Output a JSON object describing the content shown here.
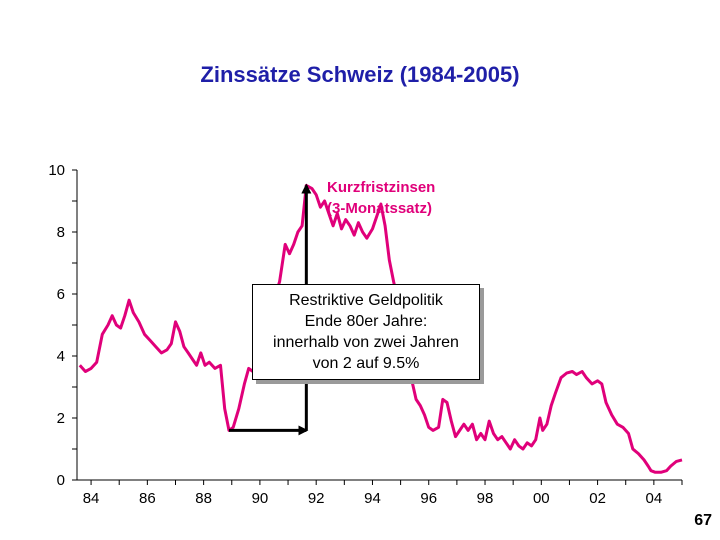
{
  "chart_data": {
    "type": "line",
    "title": "Zinssätze Schweiz (1984-2005)",
    "xlabel": "",
    "ylabel": "",
    "xlim": [
      83.5,
      105
    ],
    "ylim": [
      0,
      10
    ],
    "x_ticks": [
      "84",
      "86",
      "88",
      "90",
      "92",
      "94",
      "96",
      "98",
      "00",
      "02",
      "04"
    ],
    "y_ticks": [
      "0",
      "2",
      "4",
      "6",
      "8",
      "10"
    ],
    "grid": false,
    "series": [
      {
        "name": "Kurzfristzinsen (3-Monatssatz)",
        "color": "#e0007a",
        "points": [
          [
            83.6,
            3.7
          ],
          [
            83.8,
            3.5
          ],
          [
            84.0,
            3.6
          ],
          [
            84.2,
            3.8
          ],
          [
            84.4,
            4.7
          ],
          [
            84.6,
            5.0
          ],
          [
            84.75,
            5.3
          ],
          [
            84.9,
            5.0
          ],
          [
            85.05,
            4.9
          ],
          [
            85.2,
            5.3
          ],
          [
            85.35,
            5.8
          ],
          [
            85.5,
            5.4
          ],
          [
            85.7,
            5.1
          ],
          [
            85.9,
            4.7
          ],
          [
            86.1,
            4.5
          ],
          [
            86.3,
            4.3
          ],
          [
            86.5,
            4.1
          ],
          [
            86.7,
            4.2
          ],
          [
            86.85,
            4.4
          ],
          [
            87.0,
            5.1
          ],
          [
            87.15,
            4.8
          ],
          [
            87.3,
            4.3
          ],
          [
            87.45,
            4.1
          ],
          [
            87.6,
            3.9
          ],
          [
            87.75,
            3.7
          ],
          [
            87.9,
            4.1
          ],
          [
            88.05,
            3.7
          ],
          [
            88.2,
            3.8
          ],
          [
            88.4,
            3.6
          ],
          [
            88.6,
            3.7
          ],
          [
            88.75,
            2.3
          ],
          [
            88.9,
            1.6
          ],
          [
            89.05,
            1.7
          ],
          [
            89.25,
            2.3
          ],
          [
            89.45,
            3.1
          ],
          [
            89.6,
            3.6
          ],
          [
            89.75,
            3.5
          ],
          [
            89.9,
            4.0
          ],
          [
            90.1,
            4.9
          ],
          [
            90.3,
            5.6
          ],
          [
            90.5,
            5.8
          ],
          [
            90.7,
            6.4
          ],
          [
            90.9,
            7.6
          ],
          [
            91.05,
            7.3
          ],
          [
            91.2,
            7.6
          ],
          [
            91.35,
            8.0
          ],
          [
            91.5,
            8.2
          ],
          [
            91.65,
            9.5
          ],
          [
            91.85,
            9.4
          ],
          [
            92.0,
            9.2
          ],
          [
            92.15,
            8.8
          ],
          [
            92.3,
            9.0
          ],
          [
            92.45,
            8.6
          ],
          [
            92.6,
            8.2
          ],
          [
            92.75,
            8.6
          ],
          [
            92.9,
            8.1
          ],
          [
            93.05,
            8.4
          ],
          [
            93.2,
            8.2
          ],
          [
            93.35,
            7.9
          ],
          [
            93.5,
            8.3
          ],
          [
            93.65,
            8.0
          ],
          [
            93.8,
            7.8
          ],
          [
            94.0,
            8.1
          ],
          [
            94.15,
            8.5
          ],
          [
            94.3,
            8.9
          ],
          [
            94.45,
            8.2
          ],
          [
            94.6,
            7.1
          ],
          [
            94.75,
            6.4
          ],
          [
            94.85,
            6.0
          ],
          [
            94.95,
            5.4
          ],
          [
            95.1,
            4.0
          ],
          [
            95.25,
            3.5
          ],
          [
            95.4,
            3.2
          ],
          [
            95.55,
            2.6
          ],
          [
            95.7,
            2.4
          ],
          [
            95.85,
            2.1
          ],
          [
            96.0,
            1.7
          ],
          [
            96.15,
            1.6
          ],
          [
            96.35,
            1.7
          ],
          [
            96.5,
            2.6
          ],
          [
            96.65,
            2.5
          ],
          [
            96.8,
            1.9
          ],
          [
            96.95,
            1.4
          ],
          [
            97.1,
            1.6
          ],
          [
            97.25,
            1.8
          ],
          [
            97.4,
            1.6
          ],
          [
            97.55,
            1.8
          ],
          [
            97.7,
            1.3
          ],
          [
            97.85,
            1.5
          ],
          [
            98.0,
            1.3
          ],
          [
            98.15,
            1.9
          ],
          [
            98.3,
            1.5
          ],
          [
            98.45,
            1.3
          ],
          [
            98.6,
            1.4
          ],
          [
            98.75,
            1.2
          ],
          [
            98.9,
            1.0
          ],
          [
            99.05,
            1.3
          ],
          [
            99.2,
            1.1
          ],
          [
            99.35,
            1.0
          ],
          [
            99.5,
            1.2
          ],
          [
            99.65,
            1.1
          ],
          [
            99.8,
            1.3
          ],
          [
            99.95,
            2.0
          ],
          [
            100.05,
            1.6
          ],
          [
            100.2,
            1.8
          ],
          [
            100.35,
            2.4
          ],
          [
            100.5,
            2.8
          ],
          [
            100.7,
            3.3
          ],
          [
            100.9,
            3.45
          ],
          [
            101.1,
            3.5
          ],
          [
            101.25,
            3.4
          ],
          [
            101.45,
            3.5
          ],
          [
            101.6,
            3.3
          ],
          [
            101.8,
            3.1
          ],
          [
            102.0,
            3.2
          ],
          [
            102.15,
            3.1
          ],
          [
            102.3,
            2.5
          ],
          [
            102.5,
            2.1
          ],
          [
            102.7,
            1.8
          ],
          [
            102.9,
            1.7
          ],
          [
            103.1,
            1.5
          ],
          [
            103.25,
            1.0
          ],
          [
            103.45,
            0.85
          ],
          [
            103.65,
            0.65
          ],
          [
            103.8,
            0.45
          ],
          [
            103.9,
            0.3
          ],
          [
            104.05,
            0.25
          ],
          [
            104.25,
            0.25
          ],
          [
            104.45,
            0.3
          ],
          [
            104.6,
            0.45
          ],
          [
            104.8,
            0.6
          ],
          [
            105.0,
            0.65
          ]
        ]
      }
    ],
    "series_label_lines": [
      "Kurzfristzinsen",
      "(3-Monatssatz)"
    ],
    "annotation": {
      "lines": [
        "Restriktive Geldpolitik",
        "Ende 80er Jahre:",
        "innerhalb von zwei Jahren",
        "von 2 auf 9.5%"
      ]
    },
    "arrows": [
      {
        "from": [
          88.9,
          1.6
        ],
        "to": [
          91.65,
          1.6
        ]
      },
      {
        "from": [
          91.65,
          1.6
        ],
        "to": [
          91.65,
          9.5
        ]
      }
    ]
  },
  "page_number": "67"
}
